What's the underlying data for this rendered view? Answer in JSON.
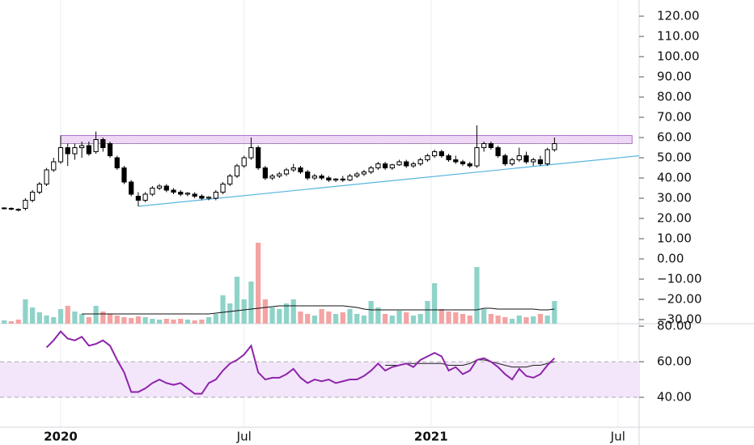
{
  "chart_data": {
    "type": "candlestick",
    "ohlc": [
      [
        25,
        25.5,
        24.5,
        25.2
      ],
      [
        25,
        25.5,
        24,
        24.8
      ],
      [
        24.5,
        25,
        23.5,
        24.2
      ],
      [
        25,
        30,
        24,
        29
      ],
      [
        29,
        34,
        28,
        33
      ],
      [
        33,
        38,
        32,
        37
      ],
      [
        37,
        45,
        36,
        44
      ],
      [
        44,
        50,
        43,
        48
      ],
      [
        48,
        61,
        47,
        55
      ],
      [
        55,
        57,
        46,
        52
      ],
      [
        52,
        57,
        49,
        55
      ],
      [
        55,
        58,
        50,
        56
      ],
      [
        56,
        58,
        51,
        52
      ],
      [
        53,
        63,
        52,
        59
      ],
      [
        59,
        60,
        53,
        55
      ],
      [
        57,
        58,
        50,
        51
      ],
      [
        50,
        51,
        44,
        45
      ],
      [
        45,
        46,
        37,
        38
      ],
      [
        38,
        39,
        31,
        32
      ],
      [
        31,
        33,
        26,
        29
      ],
      [
        29,
        33,
        28,
        32
      ],
      [
        32,
        36,
        31,
        35
      ],
      [
        35,
        37,
        34,
        36
      ],
      [
        36,
        37,
        33,
        34
      ],
      [
        34,
        35,
        32,
        33
      ],
      [
        33,
        34,
        31,
        32
      ],
      [
        32,
        33,
        31,
        32.5
      ],
      [
        32,
        33,
        30,
        31
      ],
      [
        31,
        32,
        29,
        30
      ],
      [
        30,
        31,
        29,
        30.5
      ],
      [
        30,
        34,
        29,
        33
      ],
      [
        33,
        38,
        32,
        37
      ],
      [
        37,
        42,
        36,
        41
      ],
      [
        41,
        47,
        40,
        46
      ],
      [
        46,
        51,
        45,
        50
      ],
      [
        50,
        60,
        49,
        55
      ],
      [
        55,
        56,
        44,
        45
      ],
      [
        45,
        46,
        39,
        40
      ],
      [
        40,
        42,
        39,
        41
      ],
      [
        41,
        43,
        40,
        42
      ],
      [
        42,
        45,
        41,
        44
      ],
      [
        44,
        47,
        43,
        45
      ],
      [
        45,
        46,
        42,
        43
      ],
      [
        43,
        44,
        39,
        40
      ],
      [
        40,
        42,
        39,
        41
      ],
      [
        41,
        42,
        39,
        40
      ],
      [
        40,
        41,
        38,
        39
      ],
      [
        39,
        40,
        38,
        39.5
      ],
      [
        39.5,
        41,
        38,
        39
      ],
      [
        39,
        42,
        38.5,
        41
      ],
      [
        41,
        43,
        40,
        42
      ],
      [
        42,
        44,
        41,
        43
      ],
      [
        43,
        46,
        42,
        45
      ],
      [
        45,
        48,
        44,
        47
      ],
      [
        47,
        48,
        44,
        45
      ],
      [
        45,
        47,
        44,
        46.5
      ],
      [
        46.5,
        49,
        46,
        48
      ],
      [
        48,
        49,
        45,
        46
      ],
      [
        46,
        48,
        45,
        47
      ],
      [
        47,
        50,
        46,
        49
      ],
      [
        49,
        52,
        48,
        51
      ],
      [
        51,
        54,
        50,
        53
      ],
      [
        53,
        54,
        50,
        51
      ],
      [
        51,
        52,
        48,
        49
      ],
      [
        49,
        51,
        47,
        48
      ],
      [
        48,
        49,
        46,
        47
      ],
      [
        47,
        48,
        45,
        46
      ],
      [
        46,
        66,
        45,
        55
      ],
      [
        55,
        58,
        53,
        57
      ],
      [
        57,
        58,
        54,
        55
      ],
      [
        55,
        56,
        50,
        51
      ],
      [
        51,
        52,
        46,
        47
      ],
      [
        47,
        50,
        46,
        49
      ],
      [
        49,
        55,
        48,
        51
      ],
      [
        51,
        53,
        47,
        48
      ],
      [
        48,
        50,
        46,
        49
      ],
      [
        49,
        51,
        46,
        47
      ],
      [
        47,
        55,
        46,
        54
      ],
      [
        54,
        60,
        53,
        57
      ]
    ],
    "volume": [
      4,
      3,
      5,
      30,
      20,
      14,
      10,
      8,
      18,
      22,
      15,
      12,
      8,
      22,
      15,
      12,
      10,
      8,
      7,
      9,
      8,
      6,
      5,
      6,
      5,
      6,
      5,
      4,
      5,
      8,
      12,
      35,
      25,
      58,
      30,
      52,
      100,
      30,
      20,
      18,
      25,
      30,
      15,
      12,
      10,
      18,
      15,
      12,
      14,
      18,
      12,
      10,
      28,
      20,
      12,
      10,
      16,
      14,
      10,
      12,
      28,
      50,
      18,
      15,
      14,
      12,
      10,
      70,
      18,
      12,
      10,
      8,
      6,
      10,
      8,
      9,
      12,
      10,
      28
    ],
    "volume_ma": [
      null,
      null,
      null,
      null,
      null,
      null,
      null,
      null,
      null,
      null,
      null,
      12,
      12,
      12,
      12,
      12,
      12,
      12,
      12,
      12,
      12,
      12,
      12,
      12,
      12,
      12,
      12,
      12,
      12,
      12,
      13,
      14,
      15,
      16,
      17,
      18,
      19,
      20,
      21,
      22,
      22,
      22,
      22,
      22,
      22,
      22,
      22,
      22,
      22,
      21,
      20,
      18,
      17,
      17,
      17,
      17,
      17,
      17,
      17,
      17,
      17,
      17,
      17,
      17,
      17,
      17,
      17,
      17,
      19,
      19,
      18,
      18,
      18,
      18,
      18,
      18,
      17,
      17,
      18
    ],
    "volume_lim": [
      0,
      100
    ],
    "up_volume_color": "#8fd3c8",
    "down_volume_color": "#f4a3a3",
    "ylim": [
      -32,
      128
    ],
    "yticks": [
      {
        "value": 120,
        "label": "120.00"
      },
      {
        "value": 110,
        "label": "110.00"
      },
      {
        "value": 100,
        "label": "100.00"
      },
      {
        "value": 90,
        "label": "90.00"
      },
      {
        "value": 80,
        "label": "80.00"
      },
      {
        "value": 70,
        "label": "70.00"
      },
      {
        "value": 60,
        "label": "60.00"
      },
      {
        "value": 50,
        "label": "50.00"
      },
      {
        "value": 40,
        "label": "40.00"
      },
      {
        "value": 30,
        "label": "30.00"
      },
      {
        "value": 20,
        "label": "20.00"
      },
      {
        "value": 10,
        "label": "10.00"
      },
      {
        "value": 0,
        "label": "0.00"
      },
      {
        "value": -10,
        "label": "−10.00"
      },
      {
        "value": -20,
        "label": "−20.00"
      },
      {
        "value": -30,
        "label": "−30.00"
      }
    ],
    "xlim": [
      -0.6,
      90
    ],
    "xticks": [
      {
        "value": 8,
        "label": "2020"
      },
      {
        "value": 34,
        "label": "Jul"
      },
      {
        "value": 60.5,
        "label": "2021"
      },
      {
        "value": 87,
        "label": "Jul"
      }
    ],
    "resistance_zone": {
      "low": 57,
      "high": 61,
      "from": 8,
      "to": 89,
      "color": "#d9a8e8"
    },
    "trendline": {
      "from": [
        19,
        26
      ],
      "to": [
        90,
        51
      ],
      "color": "#5ab4e0"
    },
    "rsi": {
      "values": [
        null,
        null,
        null,
        null,
        null,
        null,
        68,
        72,
        77,
        73,
        72,
        74,
        69,
        70,
        72,
        69,
        61,
        54,
        43,
        43,
        45,
        48,
        50,
        48,
        47,
        48,
        45,
        42,
        42,
        48,
        50,
        55,
        59,
        61,
        64,
        69,
        54,
        50,
        51,
        51,
        53,
        56,
        51,
        48,
        50,
        49,
        50,
        48,
        49,
        50,
        50,
        52,
        55,
        59,
        55,
        57,
        58,
        59,
        57,
        61,
        63,
        65,
        63,
        55,
        57,
        53,
        55,
        61,
        62,
        60,
        57,
        53,
        50,
        56,
        52,
        51,
        53,
        58,
        62
      ],
      "ma": [
        null,
        null,
        null,
        null,
        null,
        null,
        null,
        null,
        null,
        null,
        null,
        null,
        null,
        null,
        null,
        null,
        null,
        null,
        null,
        null,
        null,
        null,
        null,
        null,
        null,
        null,
        null,
        null,
        null,
        null,
        null,
        null,
        null,
        null,
        null,
        null,
        null,
        null,
        null,
        null,
        null,
        null,
        null,
        null,
        null,
        null,
        null,
        null,
        null,
        null,
        null,
        null,
        null,
        null,
        58,
        58,
        58,
        59,
        59,
        59,
        59,
        59,
        59,
        58,
        58,
        58,
        59,
        61,
        61,
        60,
        59,
        58,
        57,
        57,
        57,
        58,
        58,
        59,
        60
      ],
      "color": "#8e24aa",
      "band": [
        40,
        60
      ],
      "ylim": [
        23.2,
        81.4
      ],
      "yticks": [
        {
          "value": 80,
          "label": "80.00"
        },
        {
          "value": 60,
          "label": "60.00"
        },
        {
          "value": 40,
          "label": "40.00"
        }
      ]
    }
  }
}
